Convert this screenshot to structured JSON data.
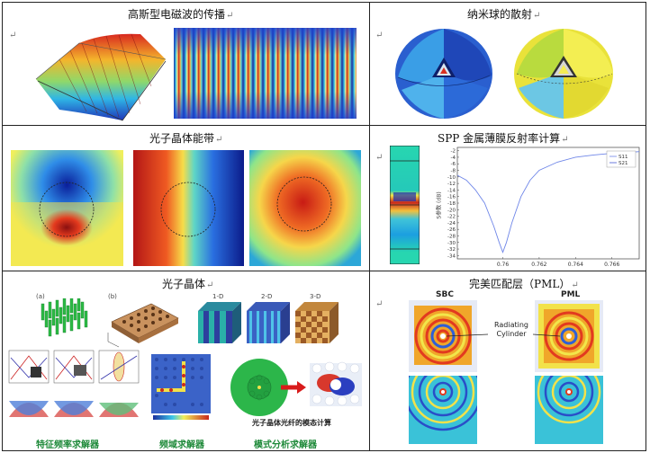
{
  "return_mark": "↵",
  "cells": {
    "gaussian": {
      "title": "高斯型电磁波的传播"
    },
    "nanoball": {
      "title": "纳米球的散射"
    },
    "bandgap": {
      "title": "光子晶体能带"
    },
    "spp": {
      "title": "SPP 金属薄膜反射率计算",
      "legend": [
        "S11",
        "S21"
      ],
      "ylabel": "S参数 (dB)",
      "yticks": [
        "-2",
        "-4",
        "-6",
        "-8",
        "-10",
        "-12",
        "-14",
        "-16",
        "-18",
        "-20",
        "-22",
        "-24",
        "-26",
        "-28",
        "-30",
        "-32",
        "-34"
      ],
      "xticks": [
        "0.76",
        "0.762",
        "0.764",
        "0.766"
      ]
    },
    "crystal": {
      "title": "光子晶体",
      "panel_a": "(a)",
      "panel_b": "(b)",
      "dims": [
        "1-D",
        "2-D",
        "3-D"
      ],
      "fiber_caption": "光子晶体光纤的模态计算",
      "solvers": [
        "特征频率求解器",
        "频域求解器",
        "模式分析求解器"
      ]
    },
    "pml": {
      "title": "完美匹配层（PML）",
      "left_label": "SBC",
      "right_label": "PML",
      "annotation": [
        "Radiating",
        "Cylinder"
      ]
    }
  },
  "chart_data": {
    "type": "line",
    "title": "",
    "xlabel": "",
    "ylabel": "S参数 (dB)",
    "xlim": [
      0.7575,
      0.7675
    ],
    "ylim": [
      -35,
      -1
    ],
    "legend_position": "top-right",
    "series": [
      {
        "name": "S11",
        "color": "#6f86e8",
        "x": [
          0.7575,
          0.758,
          0.7585,
          0.759,
          0.7595,
          0.7598,
          0.76,
          0.7602,
          0.7605,
          0.761,
          0.7615,
          0.762,
          0.763,
          0.764,
          0.765,
          0.766,
          0.767,
          0.7675
        ],
        "y": [
          -9.5,
          -11,
          -14,
          -18,
          -25,
          -30,
          -33,
          -30,
          -24,
          -16,
          -11,
          -8,
          -5.5,
          -4,
          -3.3,
          -2.8,
          -2.5,
          -2.3
        ]
      },
      {
        "name": "S21",
        "color": "#4a5bd6",
        "x": [],
        "y": []
      }
    ]
  }
}
